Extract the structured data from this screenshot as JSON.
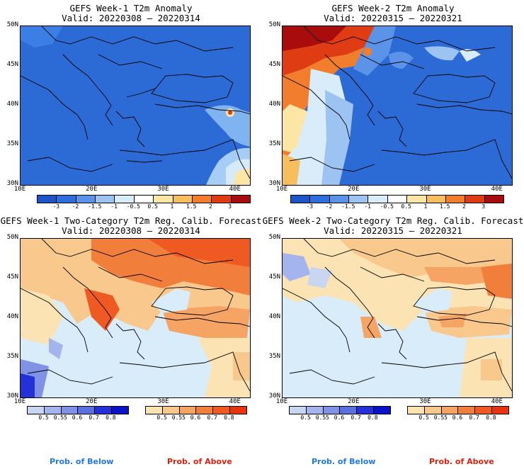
{
  "panels": [
    {
      "title": "GEFS Week-1 T2m Anomaly",
      "valid": "Valid: 20220308 – 20220314"
    },
    {
      "title": "GEFS Week-2 T2m Anomaly",
      "valid": "Valid: 20220315 – 20220321"
    },
    {
      "title": "GEFS Week-1 Two-Category T2m Reg. Calib. Forecast",
      "valid": "Valid: 20220308 – 20220314"
    },
    {
      "title": "GEFS Week-2 Two-Category T2m Reg. Calib. Forecast",
      "valid": "Valid: 20220315 – 20220321"
    }
  ],
  "axes": {
    "lat_labels": [
      "50N",
      "45N",
      "40N",
      "35N",
      "30N"
    ],
    "lon_labels": [
      "10E",
      "20E",
      "30E",
      "40E"
    ]
  },
  "anomaly_colorbar": {
    "labels": [
      "-3",
      "-2",
      "-1.5",
      "-1",
      "-0.5",
      "0.5",
      "1",
      "1.5",
      "2",
      "3"
    ],
    "colors": [
      "#1c55c8",
      "#2e6fdc",
      "#5a93e8",
      "#9cc3f2",
      "#d8ecfa",
      "#ffffff",
      "#fbe6a6",
      "#f8bd5c",
      "#f27d2c",
      "#e03c14",
      "#a80c0c"
    ]
  },
  "below_colorbar": {
    "labels": [
      "0.5",
      "0.55",
      "0.6",
      "0.7",
      "0.8"
    ],
    "colors": [
      "#c8d6f2",
      "#a3b5ec",
      "#7f92e6",
      "#5a70e0",
      "#2430d8",
      "#0a12c8"
    ],
    "caption": "Prob. of Below",
    "caption_color": "#1e78e6"
  },
  "above_colorbar": {
    "labels": [
      "0.5",
      "0.55",
      "0.6",
      "0.7",
      "0.8"
    ],
    "colors": [
      "#fbe3b4",
      "#f9c88c",
      "#f6a464",
      "#f27e3c",
      "#ee5a22",
      "#e8340e"
    ],
    "caption": "Prob. of Above",
    "caption_color": "#e01e0a"
  }
}
